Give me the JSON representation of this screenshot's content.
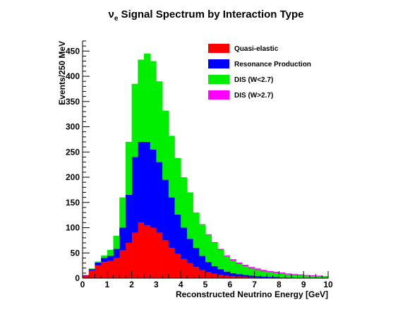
{
  "chart_data": {
    "type": "bar",
    "stacked": true,
    "title_symbol": "ν",
    "title_subscript": "e",
    "title": " Signal Spectrum by Interaction Type",
    "xlabel": "Reconstructed Neutrino Energy [GeV]",
    "ylabel": "Events/250 MeV",
    "xlim": [
      0,
      10
    ],
    "ylim": [
      0,
      470
    ],
    "bin_width": 0.25,
    "x_ticks": [
      0,
      1,
      2,
      3,
      4,
      5,
      6,
      7,
      8,
      9,
      10
    ],
    "y_ticks": [
      0,
      50,
      100,
      150,
      200,
      250,
      300,
      350,
      400,
      450
    ],
    "legend_position": "top-right",
    "grid": false,
    "bin_starts": [
      0,
      0.25,
      0.5,
      0.75,
      1.0,
      1.25,
      1.5,
      1.75,
      2.0,
      2.25,
      2.5,
      2.75,
      3.0,
      3.25,
      3.5,
      3.75,
      4.0,
      4.25,
      4.5,
      4.75,
      5.0,
      5.25,
      5.5,
      5.75,
      6.0,
      6.25,
      6.5,
      6.75,
      7.0,
      7.25,
      7.5,
      7.75,
      8.0,
      8.25,
      8.5,
      8.75,
      9.0,
      9.25,
      9.5,
      9.75
    ],
    "series": [
      {
        "name": "Quasi-elastic",
        "color": "#ff0000",
        "values": [
          5,
          15,
          25,
          32,
          34,
          40,
          55,
          70,
          90,
          110,
          105,
          100,
          90,
          75,
          60,
          48,
          38,
          30,
          22,
          16,
          12,
          9,
          7,
          5,
          4,
          3,
          2.5,
          2,
          1.6,
          1.3,
          1,
          0.8,
          0.6,
          0.5,
          0.4,
          0.3,
          0.3,
          0.2,
          0.2,
          0.2
        ]
      },
      {
        "name": "Resonance Production",
        "color": "#0000ff",
        "values": [
          1,
          3,
          6,
          8,
          10,
          18,
          45,
          95,
          150,
          160,
          165,
          155,
          140,
          120,
          100,
          78,
          62,
          48,
          38,
          28,
          20,
          15,
          11,
          8,
          6,
          5,
          4,
          3,
          2.5,
          2,
          1.6,
          1.3,
          1,
          0.8,
          0.7,
          0.6,
          0.5,
          0.4,
          0.3,
          0.3
        ]
      },
      {
        "name": "DIS (W<2.7)",
        "color": "#00ee00",
        "values": [
          0,
          1,
          2,
          5,
          12,
          26,
          60,
          105,
          145,
          163,
          175,
          175,
          160,
          137,
          122,
          112,
          100,
          92,
          70,
          62,
          54,
          46,
          38,
          30,
          25,
          20,
          17,
          14,
          12,
          10,
          9,
          8,
          7,
          6,
          5,
          4.5,
          4,
          3.5,
          3,
          2.5
        ]
      },
      {
        "name": "DIS (W>2.7)",
        "color": "#ff00ff",
        "values": [
          0,
          0,
          0,
          0,
          0,
          0,
          0,
          0,
          0,
          0,
          0,
          0,
          0,
          0,
          0,
          0,
          0,
          0,
          0,
          1,
          1,
          1.5,
          2,
          2,
          2.5,
          3,
          3,
          3,
          3,
          3,
          2.5,
          2.5,
          2.5,
          2,
          2,
          2,
          1.5,
          1.5,
          1.5,
          1
        ]
      }
    ]
  }
}
